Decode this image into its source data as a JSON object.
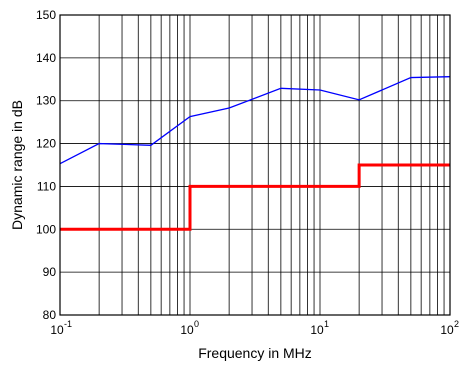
{
  "chart_data": {
    "type": "line",
    "xlabel": "Frequency in MHz",
    "ylabel": "Dynamic range in dB",
    "xscale": "log",
    "xlim": [
      0.1,
      100
    ],
    "ylim": [
      80,
      150
    ],
    "yticks": [
      80,
      90,
      100,
      110,
      120,
      130,
      140,
      150
    ],
    "xtick_decades": [
      {
        "base": "10",
        "exp": "-1"
      },
      {
        "base": "10",
        "exp": "0"
      },
      {
        "base": "10",
        "exp": "1"
      },
      {
        "base": "10",
        "exp": "2"
      }
    ],
    "grid": true,
    "series": [
      {
        "color": "#0000ff",
        "style": "line",
        "x": [
          0.1,
          0.2,
          0.5,
          1,
          2,
          5,
          10,
          20,
          50,
          100
        ],
        "y": [
          115.3,
          120.0,
          119.6,
          126.3,
          128.3,
          132.9,
          132.5,
          130.2,
          135.4,
          135.6
        ]
      },
      {
        "color": "#ff0000",
        "style": "step",
        "x": [
          0.1,
          1,
          1,
          20,
          20,
          100
        ],
        "y": [
          100,
          100,
          110,
          110,
          115,
          115
        ]
      }
    ]
  }
}
